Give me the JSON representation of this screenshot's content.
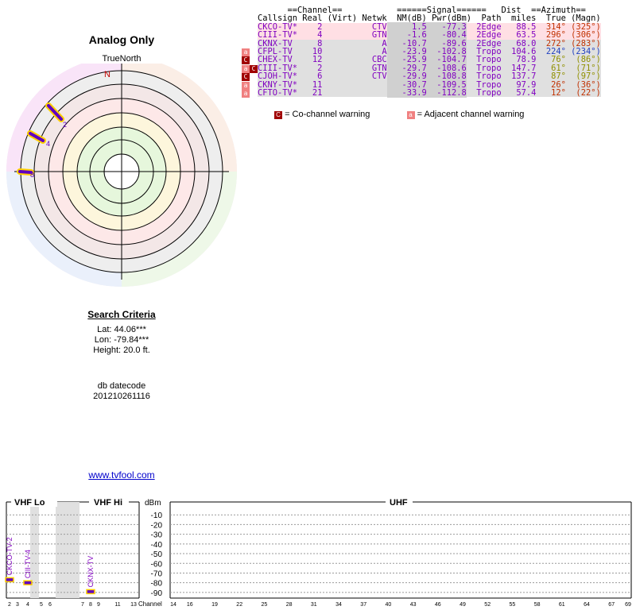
{
  "title": "Analog Only",
  "compass": {
    "true_north_label": "TrueNorth",
    "north_label": "N"
  },
  "header": {
    "line1": "      ==Channel==           ======Signal======   Dist  ==Azimuth==",
    "line2": "Callsign Real (Virt) Netwk  NM(dB) Pwr(dBm)  Path  miles  True (Magn)"
  },
  "stations": [
    {
      "callsign": "CKCO-TV*",
      "real": "2",
      "virt": "",
      "netwk": "CTV",
      "nm": "1.5",
      "pwr": "-77.3",
      "path": "2Edge",
      "dist": "88.5",
      "true": "314°",
      "magn": "(325°)",
      "warn": "",
      "row_bg": "#ffdfe4",
      "az_color": "#c03000"
    },
    {
      "callsign": "CIII-TV*",
      "real": "4",
      "virt": "",
      "netwk": "GTN",
      "nm": "-1.6",
      "pwr": "-80.4",
      "path": "2Edge",
      "dist": "63.5",
      "true": "296°",
      "magn": "(306°)",
      "warn": "",
      "row_bg": "#ffdfe4",
      "az_color": "#c03000"
    },
    {
      "callsign": "CKNX-TV",
      "real": "8",
      "virt": "",
      "netwk": "A",
      "nm": "-10.7",
      "pwr": "-89.6",
      "path": "2Edge",
      "dist": "68.0",
      "true": "272°",
      "magn": "(283°)",
      "warn": "",
      "row_bg": "#e0e0e0",
      "az_color": "#c03000"
    },
    {
      "callsign": "CFPL-TV",
      "real": "10",
      "virt": "",
      "netwk": "A",
      "nm": "-23.9",
      "pwr": "-102.8",
      "path": "Tropo",
      "dist": "104.6",
      "true": "224°",
      "magn": "(234°)",
      "warn": "a",
      "row_bg": "#e0e0e0",
      "az_color": "#2040c0"
    },
    {
      "callsign": "CHEX-TV",
      "real": "12",
      "virt": "",
      "netwk": "CBC",
      "nm": "-25.9",
      "pwr": "-104.7",
      "path": "Tropo",
      "dist": "78.9",
      "true": "76°",
      "magn": "(86°)",
      "warn": "c",
      "row_bg": "#e0e0e0",
      "az_color": "#909000"
    },
    {
      "callsign": "CIII-TV*",
      "real": "2",
      "virt": "",
      "netwk": "GTN",
      "nm": "-29.7",
      "pwr": "-108.6",
      "path": "Tropo",
      "dist": "147.7",
      "true": "61°",
      "magn": "(71°)",
      "warn": "ac",
      "row_bg": "#e0e0e0",
      "az_color": "#909000"
    },
    {
      "callsign": "CJOH-TV*",
      "real": "6",
      "virt": "",
      "netwk": "CTV",
      "nm": "-29.9",
      "pwr": "-108.8",
      "path": "Tropo",
      "dist": "137.7",
      "true": "87°",
      "magn": "(97°)",
      "warn": "c",
      "row_bg": "#e0e0e0",
      "az_color": "#909000"
    },
    {
      "callsign": "CKNY-TV*",
      "real": "11",
      "virt": "",
      "netwk": "",
      "nm": "-30.7",
      "pwr": "-109.5",
      "path": "Tropo",
      "dist": "97.9",
      "true": "26°",
      "magn": "(36°)",
      "warn": "a",
      "row_bg": "#e0e0e0",
      "az_color": "#c03000"
    },
    {
      "callsign": "CFTO-TV*",
      "real": "21",
      "virt": "",
      "netwk": "",
      "nm": "-33.9",
      "pwr": "-112.8",
      "path": "Tropo",
      "dist": "57.4",
      "true": "12°",
      "magn": "(22°)",
      "warn": "a",
      "row_bg": "#e0e0e0",
      "az_color": "#c03000"
    }
  ],
  "legend": {
    "co_symbol": "C",
    "co_text": "= Co-channel warning",
    "adj_symbol": "a",
    "adj_text": "= Adjacent channel warning"
  },
  "radar_labels": [
    "2",
    "4",
    "8"
  ],
  "criteria": {
    "heading": "Search Criteria",
    "lat": "Lat: 44.06***",
    "lon": "Lon: -79.84***",
    "height": "Height: 20.0 ft.",
    "db_label": "db datecode",
    "db_value": "201210261116"
  },
  "link": "www.tvfool.com",
  "chart": {
    "band_labels": {
      "vhf_lo": "VHF Lo",
      "vhf_hi": "VHF Hi",
      "uhf": "UHF",
      "dbm": "dBm",
      "channel": "Channel"
    },
    "dbm_ticks": [
      "-10",
      "-20",
      "-30",
      "-40",
      "-50",
      "-60",
      "-70",
      "-80",
      "-90"
    ],
    "vhf_channels": [
      "2",
      "3",
      "4",
      "5",
      "6",
      "7",
      "8",
      "9",
      "11",
      "13"
    ],
    "uhf_channels": [
      "14",
      "16",
      "19",
      "22",
      "25",
      "28",
      "31",
      "34",
      "37",
      "40",
      "43",
      "46",
      "49",
      "52",
      "55",
      "58",
      "61",
      "64",
      "67",
      "69"
    ],
    "bars": [
      {
        "label": "CKCO-TV-2",
        "channel": "2",
        "dbm": -77.3
      },
      {
        "label": "CIII-TV-4",
        "channel": "4",
        "dbm": -80.4
      },
      {
        "label": "CKNX-TV",
        "channel": "8",
        "dbm": -89.6
      }
    ]
  },
  "colors": {
    "co_warn": "#a00000",
    "adj_warn": "#f08080",
    "purple": "#8000c0",
    "highlight": "#ffd000"
  }
}
